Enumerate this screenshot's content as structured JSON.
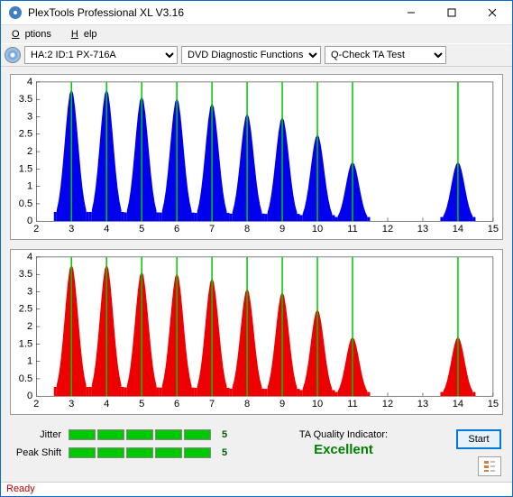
{
  "window": {
    "title": "PlexTools Professional XL V3.16"
  },
  "menu": {
    "options": "Options",
    "help": "Help"
  },
  "toolbar": {
    "drive_select": "HA:2 ID:1   PX-716A",
    "function_select": "DVD Diagnostic Functions",
    "test_select": "Q-Check TA Test"
  },
  "chart_common": {
    "ylim": [
      0,
      4
    ],
    "ytick_step": 0.5,
    "xlim": [
      2,
      15
    ],
    "xtick_step": 1,
    "grid_color": "#000000",
    "peak_line_color": "#00c800",
    "background_color": "#ffffff",
    "peaks_x": [
      3,
      4,
      5,
      6,
      7,
      8,
      9,
      10,
      11,
      14
    ],
    "peak_heights": [
      3.8,
      3.8,
      3.6,
      3.55,
      3.4,
      3.1,
      3.0,
      2.5,
      1.7,
      1.7
    ]
  },
  "chart1": {
    "fill_color": "#0000ee"
  },
  "chart2": {
    "fill_color": "#ee0000"
  },
  "meters": {
    "jitter": {
      "label": "Jitter",
      "value": "5",
      "segments": 5
    },
    "peak_shift": {
      "label": "Peak Shift",
      "value": "5",
      "segments": 5
    },
    "seg_color": "#00c800"
  },
  "quality": {
    "label": "TA Quality Indicator:",
    "value": "Excellent",
    "color": "#008000"
  },
  "buttons": {
    "start": "Start"
  },
  "status": {
    "text": "Ready",
    "color": "#c00000"
  }
}
